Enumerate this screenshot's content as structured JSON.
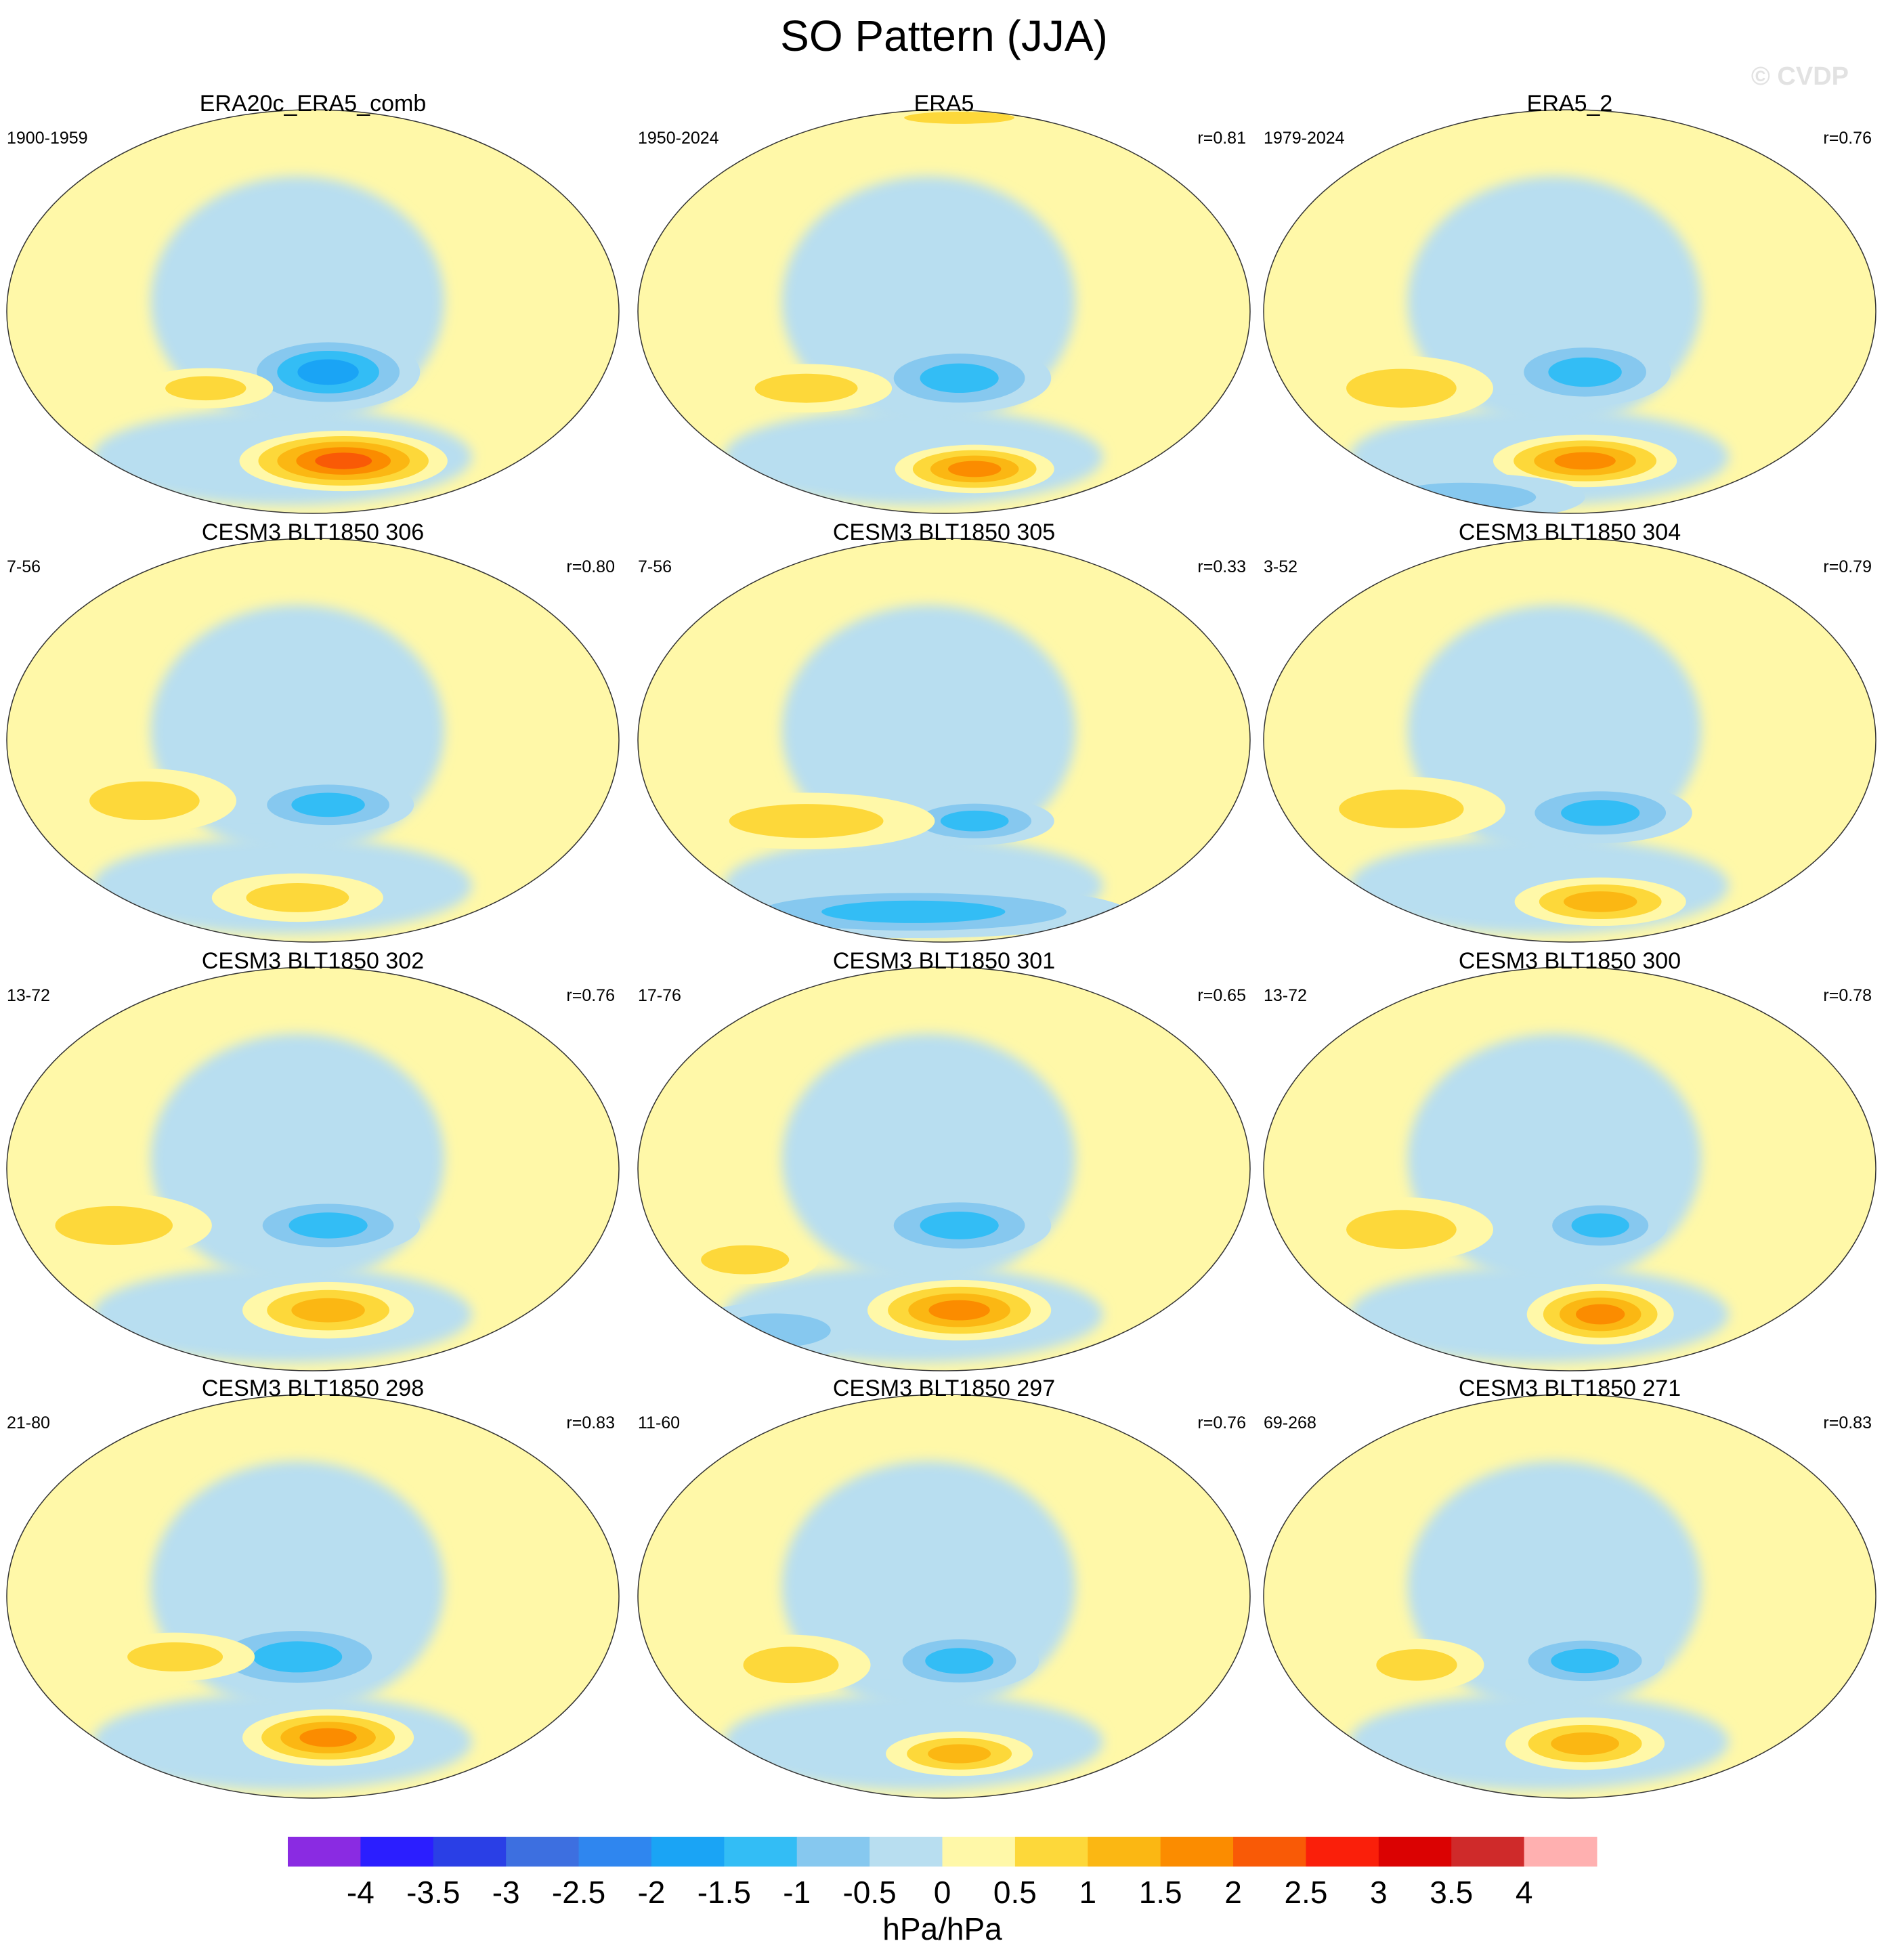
{
  "figure": {
    "title": "SO Pattern (JJA)",
    "watermark": "© CVDP",
    "colorbar_units": "hPa/hPa"
  },
  "chart_data": {
    "type": "heatmap",
    "description_units": "hPa/hPa",
    "projection": "Robinson (Pacific-centered)",
    "colorbar": {
      "labels": [
        "-4",
        "-3.5",
        "-3",
        "-2.5",
        "-2",
        "-1.5",
        "-1",
        "-0.5",
        "0",
        "0.5",
        "1",
        "1.5",
        "2",
        "2.5",
        "3",
        "3.5",
        "4"
      ],
      "colors": [
        "#8a2be2",
        "#2b1eff",
        "#2a3fe6",
        "#3d6fe0",
        "#2f86ef",
        "#1aa4f5",
        "#33bdf5",
        "#86c8ef",
        "#b8def0",
        "#fff8a8",
        "#fdd83a",
        "#fbb713",
        "#fb8c00",
        "#f95a06",
        "#fa1f0a",
        "#db0202",
        "#cf2a2a",
        "#ffb0b0"
      ]
    },
    "panels": [
      {
        "title": "ERA20c_ERA5_comb",
        "years": "1900-1959",
        "r": ""
      },
      {
        "title": "ERA5",
        "years": "1950-2024",
        "r": "r=0.81"
      },
      {
        "title": "ERA5_2",
        "years": "1979-2024",
        "r": "r=0.76"
      },
      {
        "title": "CESM3 BLT1850 306",
        "years": "7-56",
        "r": "r=0.80"
      },
      {
        "title": "CESM3 BLT1850 305",
        "years": "7-56",
        "r": "r=0.33"
      },
      {
        "title": "CESM3 BLT1850 304",
        "years": "3-52",
        "r": "r=0.79"
      },
      {
        "title": "CESM3 BLT1850 302",
        "years": "13-72",
        "r": "r=0.76"
      },
      {
        "title": "CESM3 BLT1850 301",
        "years": "17-76",
        "r": "r=0.65"
      },
      {
        "title": "CESM3 BLT1850 300",
        "years": "13-72",
        "r": "r=0.78"
      },
      {
        "title": "CESM3 BLT1850 298",
        "years": "21-80",
        "r": "r=0.83"
      },
      {
        "title": "CESM3 BLT1850 297",
        "years": "11-60",
        "r": "r=0.76"
      },
      {
        "title": "CESM3 BLT1850 271",
        "years": "69-268",
        "r": "r=0.83"
      }
    ]
  }
}
